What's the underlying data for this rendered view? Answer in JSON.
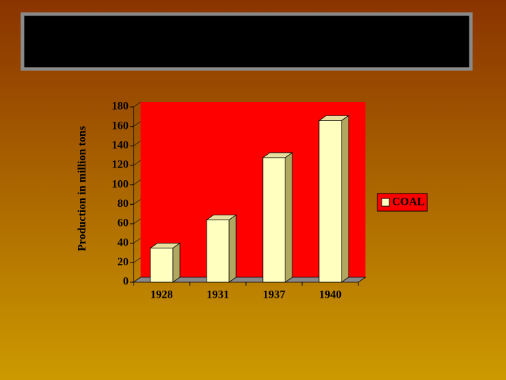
{
  "chart_data": {
    "type": "bar3d",
    "y_label": "Production in million tons",
    "categories": [
      "1928",
      "1931",
      "1937",
      "1940"
    ],
    "series": [
      {
        "name": "COAL",
        "color": "#ffffc0",
        "values": [
          35,
          64,
          128,
          166
        ]
      }
    ],
    "ylim": [
      0,
      180
    ],
    "yticks": [
      0,
      20,
      40,
      60,
      80,
      100,
      120,
      140,
      160,
      180
    ],
    "wall_color": "#ff0000",
    "legend": "right"
  }
}
